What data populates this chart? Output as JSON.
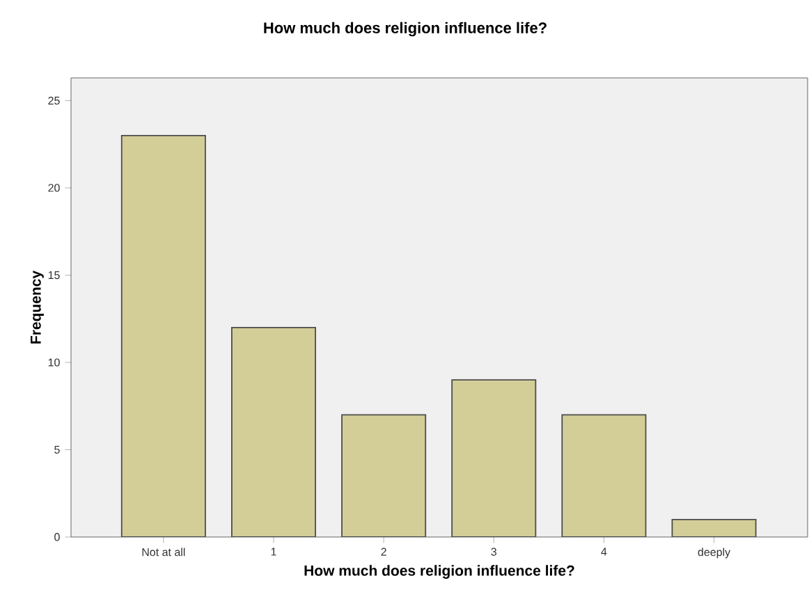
{
  "chart_data": {
    "type": "bar",
    "title": "How much does religion influence life?",
    "xlabel": "How much does religion influence life?",
    "ylabel": "Frequency",
    "categories": [
      "Not at all",
      "1",
      "2",
      "3",
      "4",
      "deeply"
    ],
    "values": [
      23,
      12,
      7,
      9,
      7,
      1
    ],
    "color": "#d3ce97",
    "ylim": [
      0,
      26.3
    ],
    "yticks": [
      0,
      5,
      10,
      15,
      20,
      25
    ],
    "grid": false
  }
}
